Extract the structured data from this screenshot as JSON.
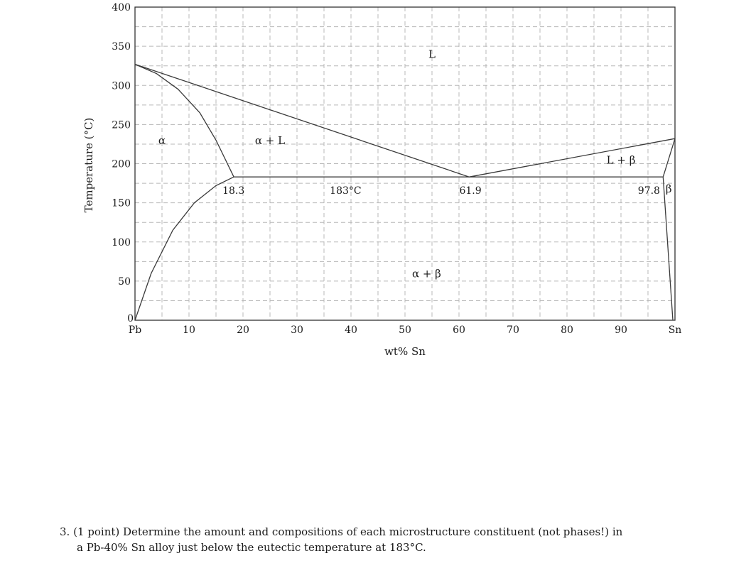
{
  "chart_data": {
    "type": "line",
    "title": "",
    "xlabel": "wt% Sn",
    "ylabel": "Temperature (°C)",
    "xlim": [
      0,
      100
    ],
    "ylim": [
      0,
      400
    ],
    "grid": true,
    "x_ticks": [
      {
        "value": 0,
        "label": "Pb"
      },
      {
        "value": 10,
        "label": "10"
      },
      {
        "value": 20,
        "label": "20"
      },
      {
        "value": 30,
        "label": "30"
      },
      {
        "value": 40,
        "label": "40"
      },
      {
        "value": 50,
        "label": "50"
      },
      {
        "value": 60,
        "label": "60"
      },
      {
        "value": 70,
        "label": "70"
      },
      {
        "value": 80,
        "label": "80"
      },
      {
        "value": 90,
        "label": "90"
      },
      {
        "value": 100,
        "label": "Sn"
      }
    ],
    "y_ticks": [
      {
        "value": 0,
        "label": "0"
      },
      {
        "value": 50,
        "label": "50"
      },
      {
        "value": 100,
        "label": "100"
      },
      {
        "value": 150,
        "label": "150"
      },
      {
        "value": 200,
        "label": "200"
      },
      {
        "value": 250,
        "label": "250"
      },
      {
        "value": 300,
        "label": "300"
      },
      {
        "value": 350,
        "label": "350"
      },
      {
        "value": 400,
        "label": "400"
      }
    ],
    "series": [
      {
        "values": [
          [
            0,
            327
          ],
          [
            4,
            315
          ],
          [
            8,
            295
          ],
          [
            12,
            265
          ],
          [
            15,
            230
          ],
          [
            18.3,
            183
          ]
        ]
      },
      {
        "values": [
          [
            0,
            327
          ],
          [
            61.9,
            183
          ]
        ]
      },
      {
        "values": [
          [
            61.9,
            183
          ],
          [
            100,
            232
          ]
        ]
      },
      {
        "values": [
          [
            100,
            232
          ],
          [
            97.8,
            183
          ]
        ]
      },
      {
        "values": [
          [
            18.3,
            183
          ],
          [
            97.8,
            183
          ]
        ]
      },
      {
        "values": [
          [
            18.3,
            183
          ],
          [
            15,
            172
          ],
          [
            11,
            150
          ],
          [
            7,
            115
          ],
          [
            3,
            60
          ],
          [
            0,
            0
          ]
        ]
      },
      {
        "values": [
          [
            97.8,
            183
          ],
          [
            99.6,
            0
          ]
        ]
      }
    ],
    "annotations": [
      {
        "text": "L",
        "x": 55,
        "y": 335,
        "kind": "region"
      },
      {
        "text": "α",
        "x": 5,
        "y": 225,
        "kind": "region"
      },
      {
        "text": "α + L",
        "x": 25,
        "y": 225,
        "kind": "region"
      },
      {
        "text": "L + β",
        "x": 90,
        "y": 200,
        "kind": "region"
      },
      {
        "text": "α + β",
        "x": 54,
        "y": 55,
        "kind": "region"
      },
      {
        "text": "β",
        "x": 99.1,
        "y": 165,
        "kind": "region"
      },
      {
        "text": "18.3",
        "x": 18.3,
        "y": 165,
        "kind": "point"
      },
      {
        "text": "183°C",
        "x": 39,
        "y": 165,
        "kind": "point"
      },
      {
        "text": "61.9",
        "x": 61.9,
        "y": 165,
        "kind": "point"
      },
      {
        "text": "97.8",
        "x": 95.5,
        "y": 165,
        "kind": "point"
      }
    ]
  },
  "question": {
    "number": "3.",
    "line1": "(1 point) Determine the amount and compositions of each microstructure constituent (not phases!) in",
    "line2": "a Pb-40% Sn alloy just below the eutectic temperature at 183°C."
  }
}
